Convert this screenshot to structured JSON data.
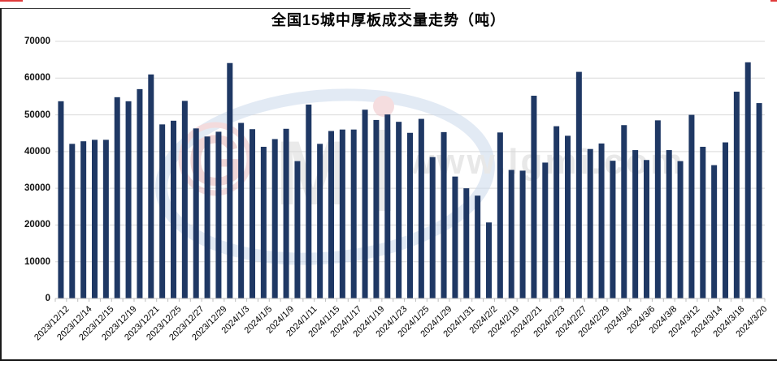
{
  "title": "全国15城中厚板成交量走势（吨）",
  "watermark": {
    "logo_letter_g": "G",
    "logo_letter_m": "M",
    "url_text": "www.lgmi.com"
  },
  "colors": {
    "bar": "#1F3864",
    "gridline": "#d9d9d9",
    "axis": "#bfbfbf",
    "border": "#1a1a1a",
    "red_mark": "#e03a3a"
  },
  "chart_data": {
    "type": "bar",
    "title": "全国15城中厚板成交量走势（吨）",
    "ylabel": "",
    "xlabel": "",
    "ylim": [
      0,
      70000
    ],
    "y_tick_step": 10000,
    "y_tick_labels": [
      "0",
      "10000",
      "20000",
      "30000",
      "40000",
      "50000",
      "60000",
      "70000"
    ],
    "grid": "horizontal",
    "legend": "none",
    "bar_count": 63,
    "x_label_rule": "one tick label under every other bar, starting at the first bar",
    "x_tick_labels": [
      "2023/12/12",
      "2023/12/14",
      "2023/12/15",
      "2023/12/19",
      "2023/12/21",
      "2023/12/25",
      "2023/12/27",
      "2023/12/29",
      "2024/1/3",
      "2024/1/5",
      "2024/1/9",
      "2024/1/11",
      "2024/1/15",
      "2024/1/17",
      "2024/1/19",
      "2024/1/23",
      "2024/1/25",
      "2024/1/29",
      "2024/1/31",
      "2024/2/2",
      "2024/2/19",
      "2024/2/21",
      "2024/2/23",
      "2024/2/27",
      "2024/2/29",
      "2024/3/4",
      "2024/3/6",
      "2024/3/8",
      "2024/3/12",
      "2024/3/14",
      "2024/3/18",
      "2024/3/20"
    ],
    "values": [
      53700,
      42100,
      42800,
      43200,
      43200,
      54800,
      53700,
      57000,
      61000,
      47400,
      48400,
      53800,
      46300,
      44100,
      45400,
      64100,
      47800,
      46100,
      41300,
      43400,
      46200,
      37400,
      52800,
      42100,
      45600,
      46000,
      46000,
      51400,
      48600,
      50100,
      48100,
      45100,
      48900,
      38500,
      45300,
      33200,
      30000,
      28000,
      20700,
      45200,
      35000,
      34800,
      55200,
      37000,
      46900,
      44300,
      61700,
      40700,
      42200,
      37500,
      47200,
      40400,
      37700,
      48500,
      40400,
      37400,
      50000,
      41300,
      36300,
      42500,
      56300,
      64300,
      53200
    ]
  }
}
